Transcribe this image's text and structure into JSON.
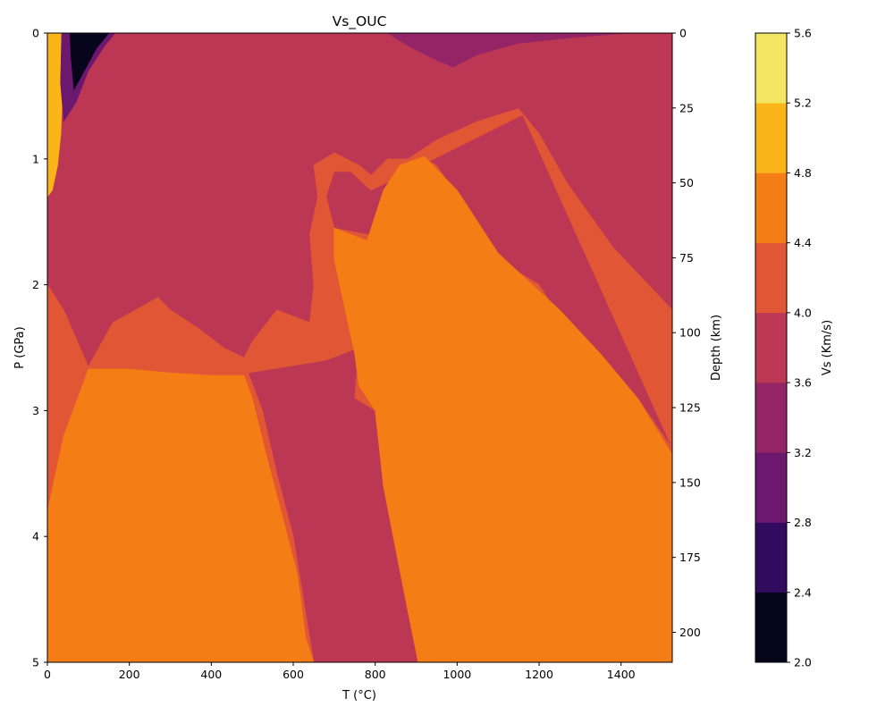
{
  "chart_data": {
    "type": "heatmap",
    "title": "Vs_OUC",
    "xlabel": "T (°C)",
    "ylabel": "P (GPa)",
    "y2label": "Depth (km)",
    "xlim": [
      0,
      1525
    ],
    "ylim": [
      5,
      0
    ],
    "y2lim": [
      210,
      0
    ],
    "xticks": [
      0,
      200,
      400,
      600,
      800,
      1000,
      1200,
      1400
    ],
    "yticks": [
      0,
      1,
      2,
      3,
      4,
      5
    ],
    "y2ticks": [
      0,
      25,
      50,
      75,
      100,
      125,
      150,
      175,
      200
    ],
    "colorbar": {
      "label": "Vs (Km/s)",
      "levels": [
        2.0,
        2.4,
        2.8,
        3.2,
        3.6,
        4.0,
        4.4,
        4.8,
        5.2,
        5.6
      ],
      "colors": [
        "#06051c",
        "#320a5e",
        "#6b186e",
        "#932567",
        "#bb3754",
        "#e15634",
        "#f57d15",
        "#fbb419",
        "#f2e662"
      ]
    },
    "regions": [
      {
        "name": "vs-3.6-4.0-background",
        "vs": "3.6-4.0",
        "color": "#bb3754",
        "points": [
          [
            0,
            0
          ],
          [
            1525,
            0
          ],
          [
            1525,
            5
          ],
          [
            0,
            5
          ]
        ]
      },
      {
        "name": "vs-3.2-3.6-top-center",
        "vs": "3.2-3.6",
        "color": "#932567",
        "points": [
          [
            830,
            0
          ],
          [
            1420,
            0
          ],
          [
            1300,
            0.03
          ],
          [
            1150,
            0.08
          ],
          [
            1050,
            0.17
          ],
          [
            990,
            0.27
          ],
          [
            940,
            0.2
          ],
          [
            880,
            0.1
          ]
        ]
      },
      {
        "name": "vs-4.0-4.4-right-band",
        "vs": "4.0-4.4",
        "color": "#e15634",
        "points": [
          [
            1525,
            2.2
          ],
          [
            1380,
            1.7
          ],
          [
            1270,
            1.2
          ],
          [
            1200,
            0.8
          ],
          [
            1150,
            0.6
          ],
          [
            1050,
            0.7
          ],
          [
            950,
            0.85
          ],
          [
            880,
            1.0
          ],
          [
            830,
            1.0
          ],
          [
            790,
            1.13
          ],
          [
            760,
            1.05
          ],
          [
            700,
            0.95
          ],
          [
            650,
            1.05
          ],
          [
            660,
            1.3
          ],
          [
            640,
            1.6
          ],
          [
            650,
            2.0
          ],
          [
            640,
            2.3
          ],
          [
            560,
            2.2
          ],
          [
            500,
            2.45
          ],
          [
            480,
            2.58
          ],
          [
            430,
            2.5
          ],
          [
            370,
            2.35
          ],
          [
            300,
            2.2
          ],
          [
            270,
            2.1
          ],
          [
            160,
            2.3
          ],
          [
            100,
            2.65
          ],
          [
            40,
            2.2
          ],
          [
            0,
            2.0
          ],
          [
            0,
            5
          ],
          [
            650,
            5
          ],
          [
            625,
            4.5
          ],
          [
            600,
            4.0
          ],
          [
            560,
            3.5
          ],
          [
            525,
            3.0
          ],
          [
            490,
            2.7
          ],
          [
            680,
            2.6
          ],
          [
            760,
            2.5
          ],
          [
            750,
            2.9
          ],
          [
            800,
            3.0
          ],
          [
            820,
            3.6
          ],
          [
            850,
            4.1
          ],
          [
            880,
            4.6
          ],
          [
            905,
            5
          ],
          [
            1525,
            5
          ],
          [
            1525,
            3.3
          ],
          [
            1440,
            2.9
          ],
          [
            1360,
            2.6
          ],
          [
            1260,
            2.3
          ],
          [
            1200,
            2.0
          ],
          [
            1100,
            1.8
          ],
          [
            1060,
            1.6
          ],
          [
            1000,
            1.3
          ],
          [
            950,
            1.05
          ],
          [
            920,
            1.0
          ],
          [
            880,
            1.1
          ],
          [
            840,
            1.3
          ],
          [
            820,
            1.6
          ],
          [
            780,
            1.6
          ],
          [
            700,
            1.55
          ],
          [
            680,
            1.3
          ],
          [
            700,
            1.1
          ],
          [
            740,
            1.1
          ],
          [
            790,
            1.25
          ],
          [
            1160,
            0.65
          ],
          [
            1525,
            3.3
          ]
        ]
      },
      {
        "name": "vs-4.4-4.8-bottom-left",
        "vs": "4.4-4.8",
        "color": "#f57d15",
        "points": [
          [
            0,
            3.8
          ],
          [
            40,
            3.2
          ],
          [
            80,
            2.85
          ],
          [
            100,
            2.67
          ],
          [
            200,
            2.67
          ],
          [
            300,
            2.7
          ],
          [
            400,
            2.72
          ],
          [
            480,
            2.72
          ],
          [
            500,
            2.9
          ],
          [
            530,
            3.3
          ],
          [
            570,
            3.8
          ],
          [
            610,
            4.3
          ],
          [
            630,
            4.8
          ],
          [
            650,
            5
          ],
          [
            0,
            5
          ]
        ]
      },
      {
        "name": "vs-4.4-4.8-right-large",
        "vs": "4.4-4.8",
        "color": "#f57d15",
        "points": [
          [
            700,
            1.55
          ],
          [
            780,
            1.65
          ],
          [
            820,
            1.25
          ],
          [
            860,
            1.05
          ],
          [
            920,
            0.98
          ],
          [
            1000,
            1.25
          ],
          [
            1060,
            1.55
          ],
          [
            1100,
            1.75
          ],
          [
            1150,
            1.9
          ],
          [
            1250,
            2.2
          ],
          [
            1350,
            2.55
          ],
          [
            1440,
            2.9
          ],
          [
            1525,
            3.35
          ],
          [
            1525,
            5
          ],
          [
            905,
            5
          ],
          [
            880,
            4.6
          ],
          [
            850,
            4.1
          ],
          [
            820,
            3.6
          ],
          [
            800,
            3.0
          ],
          [
            760,
            2.8
          ],
          [
            750,
            2.55
          ],
          [
            720,
            2.1
          ],
          [
            700,
            1.8
          ]
        ]
      },
      {
        "name": "vs-4.8-5.2-left-sliver",
        "vs": "4.8-5.2",
        "color": "#fbb419",
        "points": [
          [
            0,
            0
          ],
          [
            35,
            0
          ],
          [
            38,
            0.4
          ],
          [
            33,
            0.8
          ],
          [
            25,
            1.05
          ],
          [
            12,
            1.25
          ],
          [
            0,
            1.3
          ]
        ]
      },
      {
        "name": "vs-2.8-3.2-top-left",
        "vs": "2.8-3.2",
        "color": "#6b186e",
        "points": [
          [
            35,
            0
          ],
          [
            165,
            0
          ],
          [
            140,
            0.1
          ],
          [
            100,
            0.3
          ],
          [
            70,
            0.55
          ],
          [
            40,
            0.7
          ],
          [
            32,
            0.4
          ]
        ]
      },
      {
        "name": "vs-2.0-2.4-top-left-core",
        "vs": "2.0-2.4",
        "color": "#06051c",
        "points": [
          [
            55,
            0
          ],
          [
            150,
            0
          ],
          [
            120,
            0.12
          ],
          [
            90,
            0.3
          ],
          [
            65,
            0.45
          ],
          [
            58,
            0.2
          ]
        ]
      }
    ]
  }
}
